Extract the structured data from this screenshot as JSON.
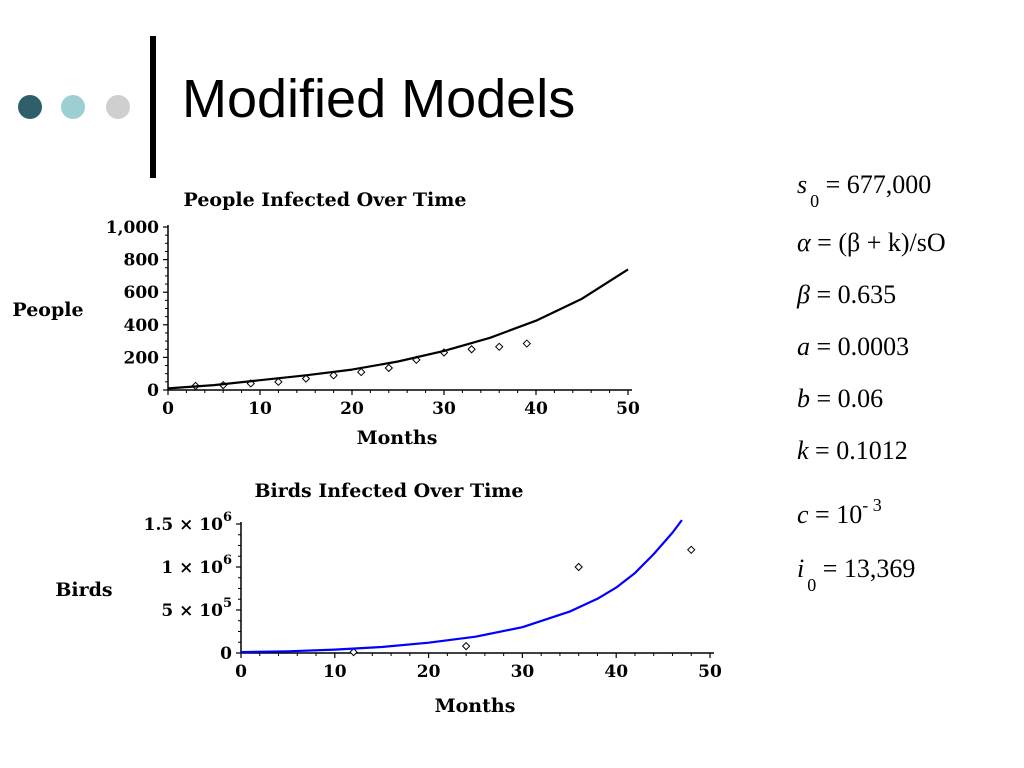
{
  "slide": {
    "title": "Modified Models",
    "dot_colors": [
      "#2f5f6a",
      "#9ccfd1",
      "#cfcfcf"
    ]
  },
  "parameters": [
    {
      "symbol": "s",
      "sub": "0",
      "expr": " = 677,000"
    },
    {
      "symbol": "α",
      "expr": " = (β + k)/sO"
    },
    {
      "symbol": "β",
      "expr": " = 0.635"
    },
    {
      "symbol": "a",
      "expr": " = 0.0003"
    },
    {
      "symbol": "b",
      "expr": " = 0.06"
    },
    {
      "symbol": "k",
      "expr": " = 0.1012"
    },
    {
      "symbol": "c",
      "expr": " = 10",
      "sup": "- 3"
    },
    {
      "symbol": "i",
      "sub": "0",
      "expr": " = 13,369"
    }
  ],
  "chart_data": [
    {
      "type": "scatter",
      "title": "People Infected Over Time",
      "xlabel": "Months",
      "ylabel": "People",
      "xlim": [
        0,
        50
      ],
      "ylim": [
        0,
        1000
      ],
      "xticks": [
        0,
        10,
        20,
        30,
        40,
        50
      ],
      "yticks": [
        0,
        200,
        400,
        600,
        800,
        1000
      ],
      "ytick_labels": [
        "0",
        "200",
        "400",
        "600",
        "800",
        "1,000"
      ],
      "series": [
        {
          "kind": "points",
          "color": "#000000",
          "x": [
            3,
            6,
            9,
            12,
            15,
            18,
            21,
            24,
            27,
            30,
            33,
            36,
            39
          ],
          "y": [
            25,
            30,
            40,
            50,
            70,
            90,
            110,
            135,
            185,
            230,
            250,
            265,
            285
          ]
        },
        {
          "kind": "line",
          "color": "#000000",
          "x": [
            0,
            5,
            10,
            15,
            20,
            25,
            30,
            35,
            40,
            45,
            50
          ],
          "y": [
            10,
            30,
            60,
            90,
            125,
            175,
            240,
            320,
            425,
            560,
            740
          ]
        }
      ]
    },
    {
      "type": "scatter",
      "title": "Birds Infected Over Time",
      "xlabel": "Months",
      "ylabel": "Birds",
      "xlim": [
        0,
        50
      ],
      "ylim": [
        0,
        1500000
      ],
      "xticks": [
        0,
        10,
        20,
        30,
        40,
        50
      ],
      "yticks": [
        0,
        500000,
        1000000,
        1500000
      ],
      "ytick_labels": [
        {
          "mant": "0",
          "exp": ""
        },
        {
          "mant": "5 × 10",
          "exp": "5"
        },
        {
          "mant": "1 × 10",
          "exp": "6"
        },
        {
          "mant": "1.5 × 10",
          "exp": "6"
        }
      ],
      "series": [
        {
          "kind": "points",
          "color": "#000000",
          "x": [
            12,
            24,
            36,
            48
          ],
          "y": [
            10000,
            80000,
            1000000,
            1200000
          ]
        },
        {
          "kind": "line",
          "color": "#0000ff",
          "x": [
            0,
            5,
            10,
            15,
            20,
            25,
            30,
            35,
            38,
            40,
            42,
            44,
            46,
            47
          ],
          "y": [
            10000,
            20000,
            40000,
            70000,
            120000,
            190000,
            300000,
            480000,
            630000,
            760000,
            930000,
            1150000,
            1400000,
            1550000
          ]
        }
      ]
    }
  ]
}
